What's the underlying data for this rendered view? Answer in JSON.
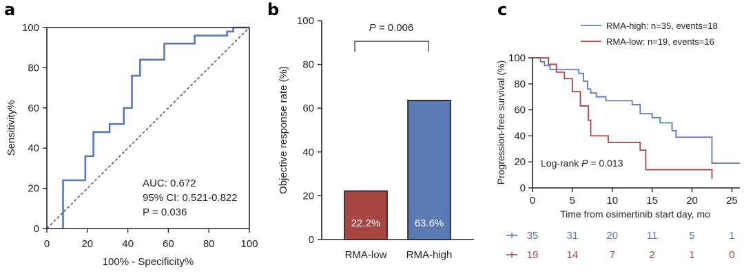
{
  "figure_labels": {
    "a": "a",
    "b": "b",
    "c": "c"
  },
  "chart_data": [
    {
      "panel": "a",
      "type": "line",
      "title": "",
      "xlabel": "100% - Specificity%",
      "ylabel": "Sensitivity%",
      "xlim": [
        0,
        100
      ],
      "ylim": [
        0,
        100
      ],
      "xticks": [
        0,
        20,
        40,
        60,
        80,
        100
      ],
      "yticks": [
        0,
        20,
        40,
        60,
        80,
        100
      ],
      "series": [
        {
          "name": "ROC",
          "color": "#5b79b3",
          "x": [
            8,
            8,
            19,
            19,
            23,
            23,
            31,
            31,
            38,
            38,
            42,
            42,
            46,
            46,
            58,
            58,
            73,
            73,
            89,
            89,
            92,
            92,
            100
          ],
          "y": [
            0,
            24,
            24,
            36,
            36,
            48,
            48,
            52,
            52,
            60,
            60,
            76,
            76,
            84,
            84,
            92,
            92,
            96,
            96,
            98,
            98,
            100,
            100
          ]
        },
        {
          "name": "Reference",
          "color": "#444444",
          "dashed": true,
          "x": [
            0,
            100
          ],
          "y": [
            0,
            100
          ]
        }
      ],
      "annotations": {
        "auc": "AUC: 0.672",
        "ci": "95% CI: 0.521-0.822",
        "p": "P = 0.036"
      }
    },
    {
      "panel": "b",
      "type": "bar",
      "title": "",
      "xlabel": "",
      "ylabel": "Objective response rate (%)",
      "ylim": [
        0,
        100
      ],
      "yticks": [
        0,
        20,
        40,
        60,
        80,
        100
      ],
      "categories": [
        "RMA-low",
        "RMA-high"
      ],
      "values": [
        22.2,
        63.6
      ],
      "data_labels": [
        "22.2%",
        "63.6%"
      ],
      "colors": [
        "#a54643",
        "#5b79b3"
      ],
      "significance": {
        "label_italic": "P",
        "label_rest": " = 0.006"
      }
    },
    {
      "panel": "c",
      "type": "line",
      "title": "",
      "xlabel": "Time from osimertinib start day, mo",
      "ylabel": "Progression-free survival (%)",
      "xlim": [
        0,
        26
      ],
      "ylim": [
        0,
        100
      ],
      "xticks": [
        0,
        5,
        10,
        15,
        20,
        25
      ],
      "yticks": [
        0,
        20,
        40,
        60,
        80,
        100
      ],
      "legend_position": "top-right",
      "series": [
        {
          "name": "RMA-high: n=35, events=18",
          "color": "#5b79b3",
          "x": [
            0,
            1,
            1,
            1.5,
            1.5,
            2.2,
            2.2,
            4,
            4,
            5.8,
            5.8,
            6.4,
            6.4,
            6.9,
            6.9,
            7.3,
            7.3,
            8,
            8,
            9.2,
            9.2,
            12.5,
            12.5,
            13.5,
            13.5,
            15,
            15,
            16,
            16,
            17.5,
            17.5,
            18,
            18,
            20,
            20,
            22.5,
            22.5,
            26
          ],
          "y": [
            100,
            100,
            97,
            97,
            94,
            94,
            91,
            91,
            91,
            91,
            88,
            88,
            82,
            82,
            76,
            76,
            73,
            73,
            70,
            70,
            67,
            67,
            64,
            64,
            57,
            57,
            54,
            54,
            50,
            50,
            44,
            44,
            39,
            39,
            39,
            39,
            19,
            19
          ]
        },
        {
          "name": "RMA-low: n=19, events=16",
          "color": "#a54643",
          "x": [
            0,
            2,
            2,
            3,
            3,
            4,
            4,
            5,
            5,
            6,
            6,
            7,
            7,
            7.3,
            7.3,
            9.5,
            9.5,
            13.5,
            13.5,
            14.2,
            14.2,
            22.5,
            22.5
          ],
          "y": [
            100,
            100,
            95,
            95,
            89,
            89,
            84,
            84,
            74,
            74,
            63,
            63,
            52,
            52,
            40,
            40,
            35,
            35,
            29,
            29,
            14,
            14,
            7
          ]
        }
      ],
      "annotation": {
        "italic": "P",
        "prefix": "Log-rank ",
        "suffix": " = 0.013"
      },
      "risk_table": {
        "times": [
          0,
          5,
          10,
          15,
          20,
          25
        ],
        "rows": [
          {
            "name": "RMA-high",
            "color": "#5b79b3",
            "counts": [
              "35",
              "31",
              "20",
              "11",
              "5",
              "1"
            ]
          },
          {
            "name": "RMA-low",
            "color": "#a54643",
            "counts": [
              "19",
              "14",
              "7",
              "2",
              "1",
              "0"
            ]
          }
        ]
      }
    }
  ]
}
